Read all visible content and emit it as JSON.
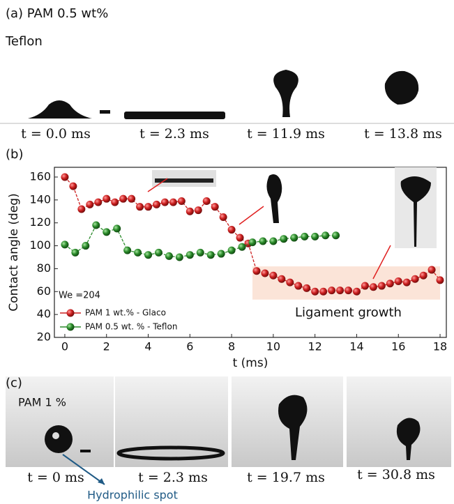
{
  "panel_a": {
    "label": "(a) PAM 0.5 wt%",
    "surface": "Teflon",
    "times": [
      "t = 0.0 ms",
      "t = 2.3 ms",
      "t = 11.9 ms",
      "t = 13.8 ms"
    ]
  },
  "chart_data": {
    "type": "line",
    "panel_label": "(b)",
    "x_label": "t (ms)",
    "y_label": "Contact angle (deg)",
    "xlim": [
      -0.5,
      18.3
    ],
    "ylim": [
      20,
      168.5
    ],
    "xticks": [
      0,
      2,
      4,
      6,
      8,
      10,
      12,
      14,
      16,
      18
    ],
    "yticks": [
      20,
      40,
      60,
      80,
      100,
      120,
      140,
      160
    ],
    "annotations": [
      "We =204",
      "Ligament growth"
    ],
    "series": [
      {
        "name": "PAM 1 wt.% - Glaco",
        "color": "#cc2020",
        "x": [
          0,
          0.4,
          0.8,
          1.2,
          1.6,
          2.0,
          2.4,
          2.8,
          3.2,
          3.6,
          4.0,
          4.4,
          4.8,
          5.2,
          5.6,
          6.0,
          6.4,
          6.8,
          7.2,
          7.6,
          8.0,
          8.4,
          8.8,
          9.2,
          9.6,
          10.0,
          10.4,
          10.8,
          11.2,
          11.6,
          12.0,
          12.4,
          12.8,
          13.2,
          13.6,
          14.0,
          14.4,
          14.8,
          15.2,
          15.6,
          16.0,
          16.4,
          16.8,
          17.2,
          17.6,
          18.0
        ],
        "values": [
          160,
          152,
          132,
          136,
          138,
          141,
          138,
          141,
          141,
          134,
          134,
          136,
          138,
          138,
          139,
          130,
          131,
          139,
          134,
          125,
          114,
          107,
          102,
          78,
          76,
          74,
          71,
          68,
          65,
          63,
          60,
          60,
          61,
          61,
          61,
          60,
          65,
          64,
          65,
          67,
          69,
          68,
          71,
          74,
          79,
          70
        ]
      },
      {
        "name": "PAM 0.5 wt. % - Teflon",
        "color": "#2a8a2a",
        "x": [
          0,
          0.5,
          1.0,
          1.5,
          2.0,
          2.5,
          3.0,
          3.5,
          4.0,
          4.5,
          5.0,
          5.5,
          6.0,
          6.5,
          7.0,
          7.5,
          8.0,
          8.5,
          9.0,
          9.5,
          10.0,
          10.5,
          11.0,
          11.5,
          12.0,
          12.5,
          13.0
        ],
        "values": [
          101,
          94,
          100,
          118,
          112,
          115,
          96,
          94,
          92,
          94,
          91,
          90,
          92,
          94,
          92,
          93,
          96,
          99,
          103,
          104,
          104,
          106,
          107,
          108,
          108,
          109,
          109
        ]
      }
    ]
  },
  "panel_c": {
    "label": "(c)",
    "sample": "PAM 1 %",
    "times": [
      "t = 0 ms",
      "t = 2.3 ms",
      "t = 19.7 ms",
      "t = 30.8 ms"
    ],
    "callout": "Hydrophilic spot"
  }
}
